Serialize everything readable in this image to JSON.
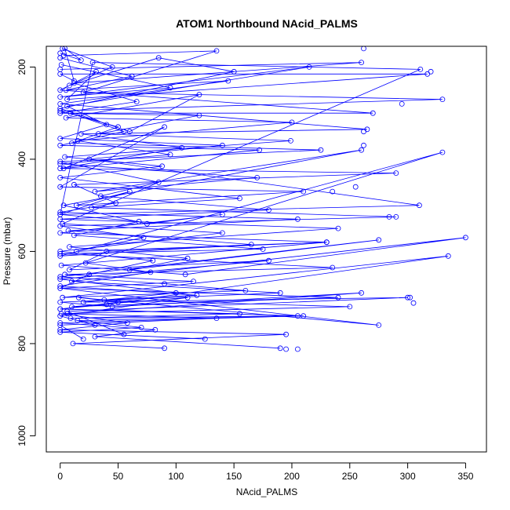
{
  "chart_data": {
    "type": "line",
    "title": "ATOM1 Northbound NAcid_PALMS",
    "xlabel": "NAcid_PALMS",
    "ylabel": "Pressure (mbar)",
    "xlim": [
      -12,
      368
    ],
    "ylim": [
      1035,
      155
    ],
    "y_reversed": true,
    "xticks": [
      0,
      50,
      100,
      150,
      200,
      250,
      300,
      350
    ],
    "yticks": [
      200,
      400,
      600,
      800,
      1000
    ],
    "grid": false,
    "legend": "none",
    "color": "#0000ff",
    "series": [
      {
        "x": [
          0,
          18,
          4,
          12,
          0,
          317,
          6,
          31,
          0,
          270,
          9,
          55,
          0,
          172,
          3,
          90,
          0,
          210,
          14,
          60,
          0,
          28,
          311,
          2,
          140,
          0,
          80,
          25,
          0,
          240,
          10,
          110,
          0,
          30
        ],
        "y": [
          170,
          185,
          160,
          230,
          215,
          215,
          270,
          210,
          250,
          300,
          300,
          340,
          370,
          380,
          420,
          330,
          460,
          470,
          500,
          470,
          520,
          190,
          205,
          540,
          560,
          600,
          620,
          650,
          680,
          700,
          720,
          700,
          740,
          760
        ]
      },
      {
        "x": [
          2,
          45,
          8,
          85,
          150,
          0,
          60,
          120,
          5,
          200,
          15,
          95,
          0,
          170,
          30,
          260,
          3,
          75,
          140,
          0,
          230,
          40,
          8,
          180,
          0,
          100,
          20,
          300,
          6,
          55
        ],
        "y": [
          160,
          200,
          240,
          180,
          210,
          290,
          340,
          260,
          310,
          320,
          360,
          390,
          410,
          440,
          470,
          380,
          500,
          540,
          520,
          560,
          580,
          600,
          640,
          620,
          660,
          690,
          710,
          700,
          730,
          780
        ]
      },
      {
        "x": [
          0,
          260,
          12,
          66,
          0,
          120,
          33,
          199,
          4,
          88,
          0,
          155,
          27,
          290,
          0,
          72,
          14,
          230,
          1,
          108,
          350,
          10,
          190,
          0,
          45,
          260,
          6,
          135,
          0,
          20
        ],
        "y": [
          205,
          190,
          235,
          275,
          300,
          305,
          345,
          360,
          395,
          415,
          440,
          485,
          505,
          525,
          545,
          570,
          600,
          580,
          630,
          650,
          570,
          665,
          690,
          710,
          720,
          690,
          735,
          745,
          760,
          790
        ]
      },
      {
        "x": [
          3,
          135,
          20,
          330,
          0,
          50,
          10,
          225,
          0,
          85,
          35,
          180,
          0,
          240,
          8,
          110,
          60,
          275,
          0,
          90,
          160,
          2,
          335,
          40,
          0,
          210,
          15,
          70,
          0,
          125
        ],
        "y": [
          175,
          165,
          255,
          270,
          295,
          330,
          365,
          380,
          405,
          450,
          480,
          510,
          530,
          550,
          590,
          615,
          640,
          575,
          655,
          670,
          685,
          700,
          610,
          715,
          725,
          740,
          750,
          765,
          775,
          790
        ]
      },
      {
        "x": [
          0,
          62,
          5,
          145,
          0,
          265,
          18,
          105,
          0,
          290,
          12,
          48,
          0,
          205,
          7,
          165,
          0,
          330,
          22,
          78,
          0,
          118,
          38,
          250,
          1,
          58,
          0,
          195,
          11,
          90
        ],
        "y": [
          180,
          220,
          250,
          230,
          280,
          335,
          345,
          375,
          420,
          430,
          455,
          495,
          515,
          530,
          555,
          585,
          610,
          385,
          625,
          645,
          675,
          695,
          705,
          720,
          735,
          755,
          770,
          780,
          800,
          810
        ]
      },
      {
        "x": [
          1,
          95,
          0,
          215,
          6,
          40,
          0,
          140,
          25,
          310,
          0,
          68,
          12,
          175,
          0,
          235,
          4,
          115,
          0,
          275,
          16,
          50,
          0,
          155,
          9,
          205,
          0,
          82,
          30,
          190
        ],
        "y": [
          195,
          245,
          265,
          200,
          285,
          325,
          355,
          370,
          400,
          500,
          520,
          535,
          565,
          595,
          605,
          635,
          650,
          665,
          680,
          760,
          700,
          710,
          725,
          735,
          745,
          740,
          755,
          770,
          785,
          810
        ]
      }
    ],
    "markers_only": [
      {
        "x": 295,
        "y": 280
      },
      {
        "x": 262,
        "y": 340
      },
      {
        "x": 262,
        "y": 370
      },
      {
        "x": 235,
        "y": 470
      },
      {
        "x": 255,
        "y": 460
      },
      {
        "x": 302,
        "y": 700
      },
      {
        "x": 305,
        "y": 712
      },
      {
        "x": 195,
        "y": 812
      },
      {
        "x": 205,
        "y": 812
      },
      {
        "x": 284,
        "y": 525
      },
      {
        "x": 320,
        "y": 210
      },
      {
        "x": 262,
        "y": 160
      }
    ]
  }
}
